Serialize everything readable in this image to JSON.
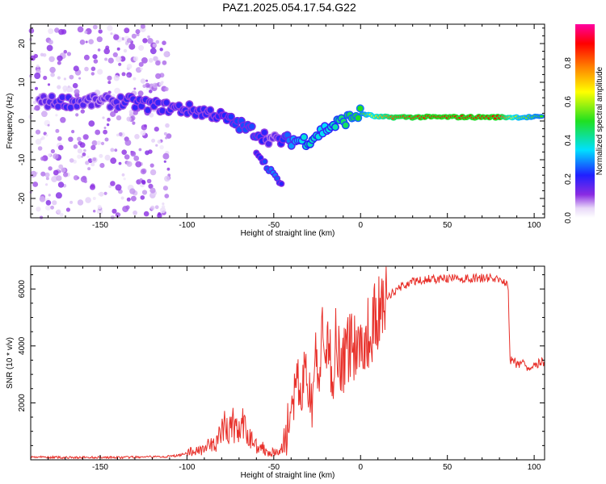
{
  "title": "PAZ1.2025.054.17.54.G22",
  "chart_data": [
    {
      "type": "heatmap",
      "xlabel": "Height of straight line (km)",
      "ylabel": "Frequency (Hz)",
      "xlim": [
        -190,
        106
      ],
      "ylim": [
        -25,
        25
      ],
      "xticks": [
        -150,
        -100,
        -50,
        0,
        50,
        100
      ],
      "yticks": [
        -20,
        -10,
        0,
        10,
        20
      ],
      "colorbar": {
        "label": "Normalized spectral amplitude",
        "range": [
          0,
          1
        ],
        "ticks": [
          0.0,
          0.2,
          0.4,
          0.6,
          0.8
        ],
        "colormap": "rainbow (white-purple-blue-cyan-green-yellow-orange-red-magenta)"
      },
      "ridge": [
        {
          "x": -185,
          "y": 5,
          "z": 0.15
        },
        {
          "x": -170,
          "y": 5,
          "z": 0.2
        },
        {
          "x": -150,
          "y": 5,
          "z": 0.15
        },
        {
          "x": -135,
          "y": 5,
          "z": 0.2
        },
        {
          "x": -120,
          "y": 4,
          "z": 0.2
        },
        {
          "x": -100,
          "y": 3,
          "z": 0.2
        },
        {
          "x": -85,
          "y": 2,
          "z": 0.2
        },
        {
          "x": -70,
          "y": -1,
          "z": 0.25
        },
        {
          "x": -60,
          "y": -3,
          "z": 0.25
        },
        {
          "x": -50,
          "y": -5,
          "z": 0.15
        },
        {
          "x": -40,
          "y": -5,
          "z": 0.3
        },
        {
          "x": -30,
          "y": -5,
          "z": 0.4
        },
        {
          "x": -20,
          "y": -2,
          "z": 0.35
        },
        {
          "x": -10,
          "y": 0,
          "z": 0.45
        },
        {
          "x": 0,
          "y": 2,
          "z": 0.5
        },
        {
          "x": 10,
          "y": 1,
          "z": 0.7
        },
        {
          "x": 20,
          "y": 1,
          "z": 0.85
        },
        {
          "x": 40,
          "y": 1,
          "z": 0.9
        },
        {
          "x": 60,
          "y": 1,
          "z": 0.9
        },
        {
          "x": 80,
          "y": 1,
          "z": 0.9
        },
        {
          "x": 90,
          "y": 1,
          "z": 0.6
        },
        {
          "x": 105,
          "y": 1,
          "z": 0.5
        }
      ],
      "branch": [
        {
          "x": -60,
          "y": -8,
          "z": 0.2
        },
        {
          "x": -55,
          "y": -11,
          "z": 0.25
        },
        {
          "x": -50,
          "y": -14,
          "z": 0.3
        },
        {
          "x": -45,
          "y": -16,
          "z": 0.2
        }
      ]
    },
    {
      "type": "line",
      "xlabel": "Height of straight line (km)",
      "ylabel": "SNR (10 * v/v)",
      "xlim": [
        -190,
        106
      ],
      "ylim": [
        0,
        6800
      ],
      "xticks": [
        -150,
        -100,
        -50,
        0,
        50,
        100
      ],
      "yticks": [
        2000,
        4000,
        6000
      ],
      "series": [
        {
          "color": "#e8302a",
          "x": [
            -190,
            -180,
            -170,
            -160,
            -150,
            -140,
            -130,
            -120,
            -110,
            -105,
            -100,
            -95,
            -90,
            -85,
            -80,
            -78,
            -76,
            -74,
            -72,
            -70,
            -68,
            -66,
            -64,
            -62,
            -60,
            -58,
            -56,
            -54,
            -52,
            -50,
            -48,
            -46,
            -44,
            -42,
            -40,
            -38,
            -36,
            -34,
            -32,
            -30,
            -28,
            -26,
            -24,
            -22,
            -20,
            -18,
            -16,
            -14,
            -12,
            -10,
            -8,
            -6,
            -4,
            -2,
            0,
            2,
            4,
            6,
            8,
            10,
            12,
            14,
            16,
            18,
            20,
            22,
            24,
            26,
            28,
            30,
            35,
            40,
            45,
            50,
            55,
            60,
            65,
            70,
            75,
            80,
            84,
            85,
            86,
            88,
            90,
            92,
            94,
            96,
            98,
            100,
            102,
            104,
            106
          ],
          "y": [
            100,
            90,
            80,
            80,
            90,
            80,
            90,
            100,
            120,
            150,
            250,
            300,
            450,
            500,
            900,
            1200,
            1000,
            1300,
            1100,
            1000,
            1200,
            900,
            800,
            700,
            500,
            500,
            400,
            300,
            300,
            250,
            250,
            300,
            600,
            1200,
            1600,
            2200,
            2800,
            2000,
            3400,
            2600,
            1800,
            3800,
            2500,
            4600,
            3000,
            4200,
            2800,
            4600,
            3600,
            3300,
            3800,
            4100,
            4000,
            4200,
            4000,
            4200,
            4400,
            4600,
            4900,
            5100,
            5300,
            5500,
            5700,
            5850,
            5950,
            6050,
            6100,
            6150,
            6200,
            6250,
            6300,
            6350,
            6350,
            6350,
            6380,
            6350,
            6380,
            6400,
            6380,
            6300,
            6250,
            6200,
            3500,
            3450,
            3400,
            3350,
            3450,
            3300,
            3200,
            3450,
            3400,
            3450,
            3400
          ]
        }
      ]
    }
  ]
}
